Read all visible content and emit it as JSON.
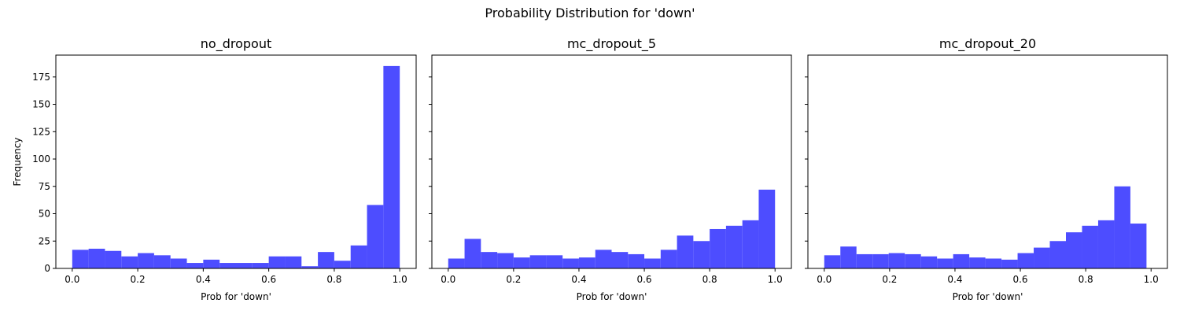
{
  "figure": {
    "suptitle": "Probability Distribution for 'down'"
  },
  "chart_data": [
    {
      "type": "bar",
      "title": "no_dropout",
      "xlabel": "Prob for 'down'",
      "ylabel": "Frequency",
      "xlim": [
        -0.05,
        1.05
      ],
      "ylim": [
        0,
        195
      ],
      "xticks": [
        0.0,
        0.2,
        0.4,
        0.6,
        0.8,
        1.0
      ],
      "xtick_labels": [
        "0.0",
        "0.2",
        "0.4",
        "0.6",
        "0.8",
        "1.0"
      ],
      "yticks": [
        0,
        25,
        50,
        75,
        100,
        125,
        150,
        175
      ],
      "ytick_labels": [
        "0",
        "25",
        "50",
        "75",
        "100",
        "125",
        "150",
        "175"
      ],
      "bin_edges": [
        0.0,
        0.05,
        0.1,
        0.15,
        0.2,
        0.25,
        0.3,
        0.35,
        0.4,
        0.45,
        0.5,
        0.55,
        0.6,
        0.65,
        0.7,
        0.75,
        0.8,
        0.85,
        0.9,
        0.95,
        1.0
      ],
      "values": [
        17,
        18,
        16,
        11,
        14,
        12,
        9,
        5,
        8,
        5,
        5,
        5,
        11,
        11,
        2,
        15,
        7,
        21,
        58,
        185
      ],
      "color": "#4d4dff"
    },
    {
      "type": "bar",
      "title": "mc_dropout_5",
      "xlabel": "Prob for 'down'",
      "xlim": [
        -0.05,
        1.05
      ],
      "ylim": [
        0,
        195
      ],
      "xticks": [
        0.0,
        0.2,
        0.4,
        0.6,
        0.8,
        1.0
      ],
      "xtick_labels": [
        "0.0",
        "0.2",
        "0.4",
        "0.6",
        "0.8",
        "1.0"
      ],
      "yticks": [
        0,
        25,
        50,
        75,
        100,
        125,
        150,
        175
      ],
      "bin_edges": [
        0.0,
        0.05,
        0.1,
        0.15,
        0.2,
        0.25,
        0.3,
        0.35,
        0.4,
        0.45,
        0.5,
        0.55,
        0.6,
        0.65,
        0.7,
        0.75,
        0.8,
        0.85,
        0.9,
        0.95,
        1.0
      ],
      "values": [
        9,
        27,
        15,
        14,
        10,
        12,
        12,
        9,
        10,
        17,
        15,
        13,
        9,
        17,
        30,
        25,
        36,
        39,
        44,
        72
      ],
      "color": "#4d4dff"
    },
    {
      "type": "bar",
      "title": "mc_dropout_20",
      "xlabel": "Prob for 'down'",
      "xlim": [
        -0.05,
        1.05
      ],
      "ylim": [
        0,
        195
      ],
      "xticks": [
        0.0,
        0.2,
        0.4,
        0.6,
        0.8,
        1.0
      ],
      "xtick_labels": [
        "0.0",
        "0.2",
        "0.4",
        "0.6",
        "0.8",
        "1.0"
      ],
      "yticks": [
        0,
        25,
        50,
        75,
        100,
        125,
        150,
        175
      ],
      "bin_edges": [
        0.0,
        0.0493,
        0.0986,
        0.1479,
        0.1972,
        0.2465,
        0.2958,
        0.3451,
        0.3944,
        0.4437,
        0.493,
        0.5423,
        0.5916,
        0.6409,
        0.6902,
        0.7395,
        0.7888,
        0.8381,
        0.8874,
        0.9367,
        0.986
      ],
      "values": [
        12,
        20,
        13,
        13,
        14,
        13,
        11,
        9,
        13,
        10,
        9,
        8,
        14,
        19,
        25,
        33,
        39,
        44,
        75,
        41
      ],
      "color": "#4d4dff"
    }
  ]
}
